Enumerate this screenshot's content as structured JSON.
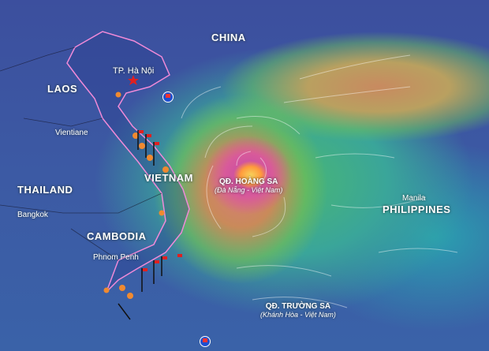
{
  "map": {
    "countries": [
      {
        "name": "CHINA"
      },
      {
        "name": "LAOS"
      },
      {
        "name": "THAILAND"
      },
      {
        "name": "CAMBODIA"
      },
      {
        "name": "VIETNAM"
      },
      {
        "name": "PHILIPPINES"
      }
    ],
    "cities": [
      {
        "name": "TP. Hà Nội"
      },
      {
        "name": "Vientiane"
      },
      {
        "name": "Bangkok"
      },
      {
        "name": "Phnom Penh"
      },
      {
        "name": "Manila"
      }
    ],
    "islands": [
      {
        "name": "QĐ. HOÀNG SA",
        "sub": "(Đà Nẵng - Việt Nam)"
      },
      {
        "name": "QĐ. TRƯỜNG SA",
        "sub": "(Khánh Hòa - Việt Nam)"
      }
    ],
    "colors": {
      "border": "#f08ad8",
      "capital_star": "#e02020",
      "flood_drop": "#f08a30",
      "warning_flag": "#e02020"
    },
    "icons": [
      "capital-star-icon",
      "flood-drop-icon",
      "warning-flag-icon",
      "storm-marker-icon"
    ]
  }
}
